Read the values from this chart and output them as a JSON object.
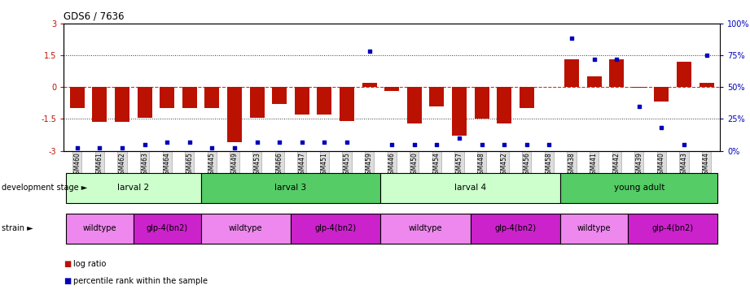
{
  "title": "GDS6 / 7636",
  "samples": [
    "GSM460",
    "GSM461",
    "GSM462",
    "GSM463",
    "GSM464",
    "GSM465",
    "GSM445",
    "GSM449",
    "GSM453",
    "GSM466",
    "GSM447",
    "GSM451",
    "GSM455",
    "GSM459",
    "GSM446",
    "GSM450",
    "GSM454",
    "GSM457",
    "GSM448",
    "GSM452",
    "GSM456",
    "GSM458",
    "GSM438",
    "GSM441",
    "GSM442",
    "GSM439",
    "GSM440",
    "GSM443",
    "GSM444"
  ],
  "log_ratio": [
    -1.0,
    -1.65,
    -1.65,
    -1.45,
    -1.0,
    -1.0,
    -1.0,
    -2.6,
    -1.45,
    -0.8,
    -1.3,
    -1.3,
    -1.6,
    0.2,
    -0.2,
    -1.7,
    -0.9,
    -2.3,
    -1.5,
    -1.7,
    -1.0,
    0.0,
    1.3,
    0.5,
    1.3,
    -0.05,
    -0.7,
    1.2,
    0.2
  ],
  "percentile": [
    2,
    2,
    2,
    5,
    7,
    7,
    2,
    2,
    7,
    7,
    7,
    7,
    7,
    78,
    5,
    5,
    5,
    10,
    5,
    5,
    5,
    5,
    88,
    72,
    72,
    35,
    18,
    5,
    75
  ],
  "ylim_left": [
    -3,
    3
  ],
  "ylim_right": [
    0,
    100
  ],
  "yticks_left": [
    -3,
    -1.5,
    0,
    1.5,
    3
  ],
  "ytick_labels_left": [
    "-3",
    "-1.5",
    "0",
    "1.5",
    "3"
  ],
  "yticks_right": [
    0,
    25,
    50,
    75,
    100
  ],
  "ytick_labels_right": [
    "0%",
    "25%",
    "50%",
    "75%",
    "100%"
  ],
  "hlines": [
    1.5,
    0.0,
    -1.5
  ],
  "bar_color": "#BB1100",
  "dot_color": "#0000BB",
  "hline_zero_color": "#CC3333",
  "hline_other_color": "#333333",
  "development_stages": [
    {
      "label": "larval 2",
      "start": 0,
      "end": 5,
      "color": "#CCFFCC"
    },
    {
      "label": "larval 3",
      "start": 6,
      "end": 13,
      "color": "#55CC66"
    },
    {
      "label": "larval 4",
      "start": 14,
      "end": 21,
      "color": "#CCFFCC"
    },
    {
      "label": "young adult",
      "start": 22,
      "end": 28,
      "color": "#55CC66"
    }
  ],
  "strains": [
    {
      "label": "wildtype",
      "start": 0,
      "end": 2,
      "color": "#EE88EE"
    },
    {
      "label": "glp-4(bn2)",
      "start": 3,
      "end": 5,
      "color": "#CC22CC"
    },
    {
      "label": "wildtype",
      "start": 6,
      "end": 9,
      "color": "#EE88EE"
    },
    {
      "label": "glp-4(bn2)",
      "start": 10,
      "end": 13,
      "color": "#CC22CC"
    },
    {
      "label": "wildtype",
      "start": 14,
      "end": 17,
      "color": "#EE88EE"
    },
    {
      "label": "glp-4(bn2)",
      "start": 18,
      "end": 21,
      "color": "#CC22CC"
    },
    {
      "label": "wildtype",
      "start": 22,
      "end": 24,
      "color": "#EE88EE"
    },
    {
      "label": "glp-4(bn2)",
      "start": 25,
      "end": 28,
      "color": "#CC22CC"
    }
  ],
  "legend_items": [
    {
      "label": "log ratio",
      "color": "#BB1100"
    },
    {
      "label": "percentile rank within the sample",
      "color": "#0000BB"
    }
  ],
  "fig_width": 9.21,
  "fig_height": 3.57,
  "dpi": 100
}
